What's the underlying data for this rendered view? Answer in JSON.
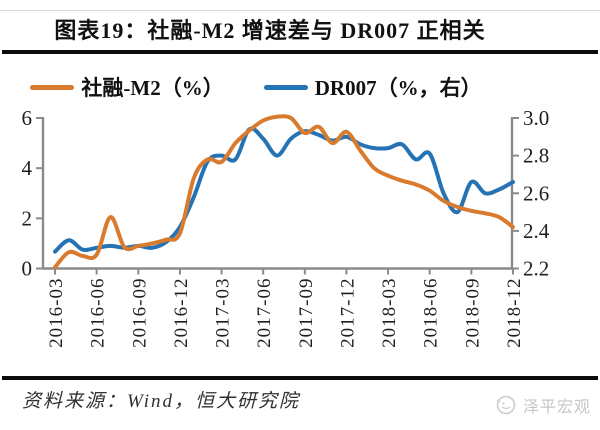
{
  "header": {
    "title": "图表19：社融-M2 增速差与 DR007 正相关"
  },
  "legend": {
    "items": [
      {
        "label": "社融-M2（%）",
        "color": "#D97B2F"
      },
      {
        "label": "DR007（%，右）",
        "color": "#2473B5"
      }
    ]
  },
  "footer": {
    "source": "资料来源：Wind，恒大研究院",
    "watermark": "泽平宏观"
  },
  "colors": {
    "series1": "#D97B2F",
    "series2": "#2473B5",
    "axis": "#8a8a8a",
    "tick_label": "#1f1f1f",
    "watermark": "#c9c9c9"
  },
  "chart_data": {
    "type": "line",
    "title": "图表19：社融-M2 增速差与 DR007 正相关",
    "x": [
      "2016-03",
      "2016-04",
      "2016-05",
      "2016-06",
      "2016-07",
      "2016-08",
      "2016-09",
      "2016-10",
      "2016-11",
      "2016-12",
      "2017-01",
      "2017-02",
      "2017-03",
      "2017-04",
      "2017-05",
      "2017-06",
      "2017-07",
      "2017-08",
      "2017-09",
      "2017-10",
      "2017-11",
      "2017-12",
      "2018-01",
      "2018-02",
      "2018-03",
      "2018-04",
      "2018-05",
      "2018-06",
      "2018-07",
      "2018-08",
      "2018-09",
      "2018-10",
      "2018-11",
      "2018-12"
    ],
    "x_tick_labels": [
      "2016-03",
      "2016-06",
      "2016-09",
      "2016-12",
      "2017-03",
      "2017-06",
      "2017-09",
      "2017-12",
      "2018-03",
      "2018-06",
      "2018-09",
      "2018-12"
    ],
    "series": [
      {
        "name": "社融-M2（%）",
        "axis": "left",
        "color": "#D97B2F",
        "values": [
          0.05,
          0.65,
          0.5,
          0.55,
          2.05,
          0.85,
          0.9,
          1.0,
          1.15,
          1.4,
          3.6,
          4.35,
          4.25,
          5.0,
          5.5,
          5.9,
          6.05,
          6.0,
          5.4,
          5.65,
          5.0,
          5.45,
          4.7,
          4.0,
          3.7,
          3.5,
          3.35,
          3.1,
          2.7,
          2.45,
          2.3,
          2.2,
          2.05,
          1.65
        ]
      },
      {
        "name": "DR007（%，右）",
        "axis": "right",
        "color": "#2473B5",
        "values": [
          2.29,
          2.35,
          2.3,
          2.31,
          2.32,
          2.31,
          2.32,
          2.31,
          2.34,
          2.42,
          2.58,
          2.77,
          2.8,
          2.78,
          2.94,
          2.89,
          2.8,
          2.89,
          2.93,
          2.91,
          2.88,
          2.9,
          2.86,
          2.84,
          2.84,
          2.86,
          2.78,
          2.81,
          2.6,
          2.5,
          2.66,
          2.6,
          2.62,
          2.66
        ]
      }
    ],
    "left_axis": {
      "range": [
        0,
        6
      ],
      "ticks": [
        0,
        2,
        4,
        6
      ]
    },
    "right_axis": {
      "range": [
        2.2,
        3.0
      ],
      "ticks": [
        2.2,
        2.4,
        2.6,
        2.8,
        3.0
      ]
    },
    "grid": false,
    "legend_position": "top"
  }
}
